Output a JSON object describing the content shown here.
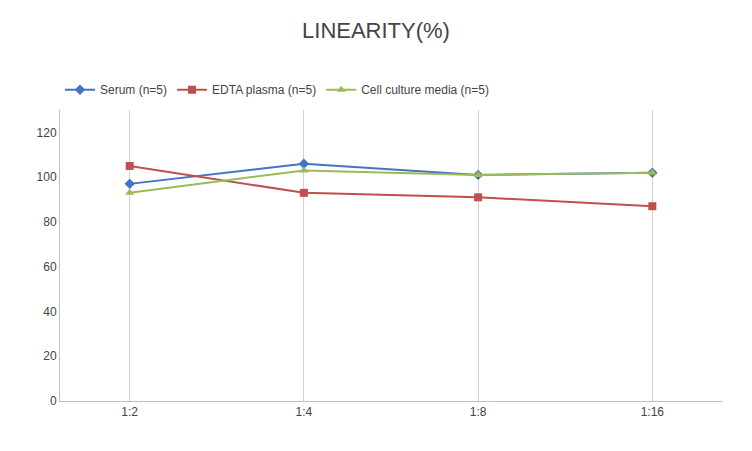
{
  "chart_data": {
    "type": "line",
    "title": "LINEARITY(%)",
    "categories": [
      "1:2",
      "1:4",
      "1:8",
      "1:16"
    ],
    "series": [
      {
        "name": "Serum (n=5)",
        "color": "#4472C4",
        "marker": "diamond",
        "values": [
          97,
          106,
          101,
          102
        ]
      },
      {
        "name": "EDTA plasma (n=5)",
        "color": "#C0504D",
        "marker": "square",
        "values": [
          105,
          93,
          91,
          87
        ]
      },
      {
        "name": "Cell culture media (n=5)",
        "color": "#9BBB59",
        "marker": "triangle-up",
        "values": [
          93,
          103,
          101,
          102
        ]
      }
    ],
    "ylim": [
      0,
      130
    ],
    "yticks": [
      0,
      20,
      40,
      60,
      80,
      100,
      120
    ],
    "grid": "x",
    "legend": "top"
  }
}
